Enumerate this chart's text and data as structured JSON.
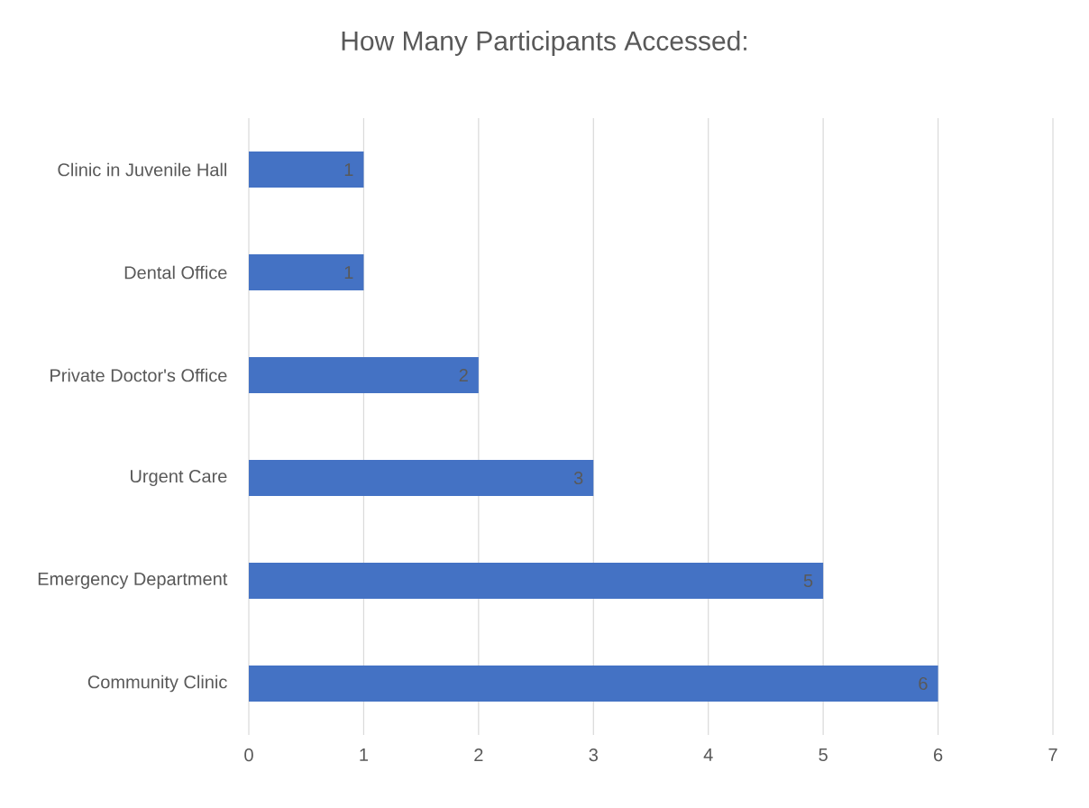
{
  "chart_data": {
    "type": "bar",
    "orientation": "horizontal",
    "title": "How Many Participants Accessed:",
    "categories": [
      "Clinic in Juvenile Hall",
      "Dental Office",
      "Private Doctor's Office",
      "Urgent Care",
      "Emergency Department",
      "Community Clinic"
    ],
    "values": [
      1,
      1,
      2,
      3,
      5,
      6
    ],
    "color": "#4472c4",
    "xlim": [
      0,
      7
    ],
    "xticks": [
      0,
      1,
      2,
      3,
      4,
      5,
      6,
      7
    ],
    "grid": "x",
    "data_labels": true
  }
}
